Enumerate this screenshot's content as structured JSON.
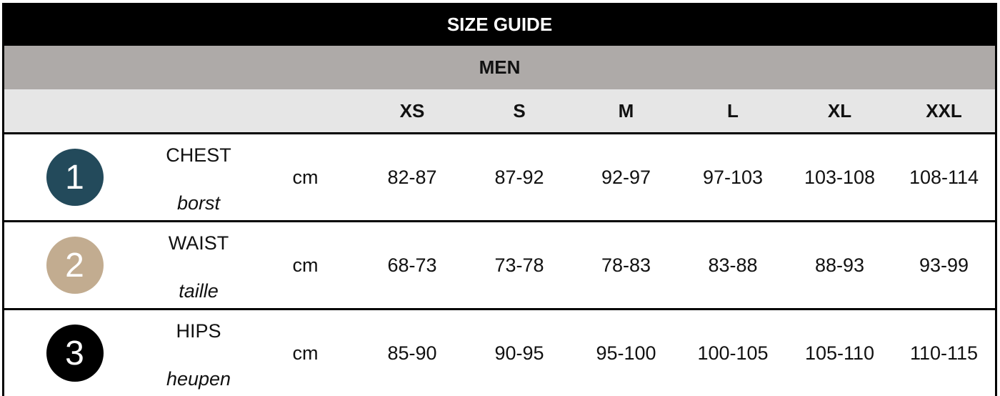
{
  "title": "SIZE GUIDE",
  "section": "MEN",
  "unit": "cm",
  "sizes": [
    "XS",
    "S",
    "M",
    "L",
    "XL",
    "XXL"
  ],
  "rows": [
    {
      "number": "1",
      "label": "CHEST",
      "translation": "borst",
      "color": "#234a5b",
      "values": [
        "82-87",
        "87-92",
        "92-97",
        "97-103",
        "103-108",
        "108-114"
      ]
    },
    {
      "number": "2",
      "label": "WAIST",
      "translation": "taille",
      "color": "#c2ac90",
      "values": [
        "68-73",
        "73-78",
        "78-83",
        "83-88",
        "88-93",
        "93-99"
      ]
    },
    {
      "number": "3",
      "label": "HIPS",
      "translation": "heupen",
      "color": "#000000",
      "values": [
        "85-90",
        "90-95",
        "95-100",
        "100-105",
        "105-110",
        "110-115"
      ]
    }
  ]
}
